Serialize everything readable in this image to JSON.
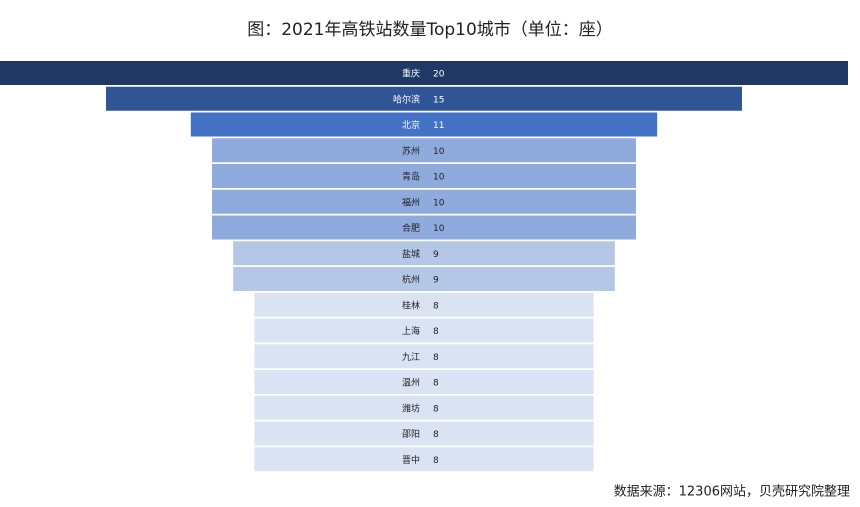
{
  "chart_data": {
    "type": "funnel",
    "title": "图：2021年高铁站数量Top10城市（单位：座）",
    "categories": [
      "重庆",
      "哈尔滨",
      "北京",
      "苏州",
      "青岛",
      "福州",
      "合肥",
      "盐城",
      "杭州",
      "桂林",
      "上海",
      "九江",
      "温州",
      "潍坊",
      "邵阳",
      "晋中"
    ],
    "values": [
      20,
      15,
      11,
      10,
      10,
      10,
      10,
      9,
      9,
      8,
      8,
      8,
      8,
      8,
      8,
      8
    ],
    "colors": [
      "#1f3864",
      "#2f5597",
      "#4472c4",
      "#8faadc",
      "#8faadc",
      "#8faadc",
      "#8faadc",
      "#b4c7e7",
      "#b4c7e7",
      "#dae3f3",
      "#dae3f3",
      "#dae3f3",
      "#dae3f3",
      "#dae3f3",
      "#dae3f3",
      "#dae3f3"
    ],
    "source": "数据来源：12306网站，贝壳研究院整理"
  }
}
